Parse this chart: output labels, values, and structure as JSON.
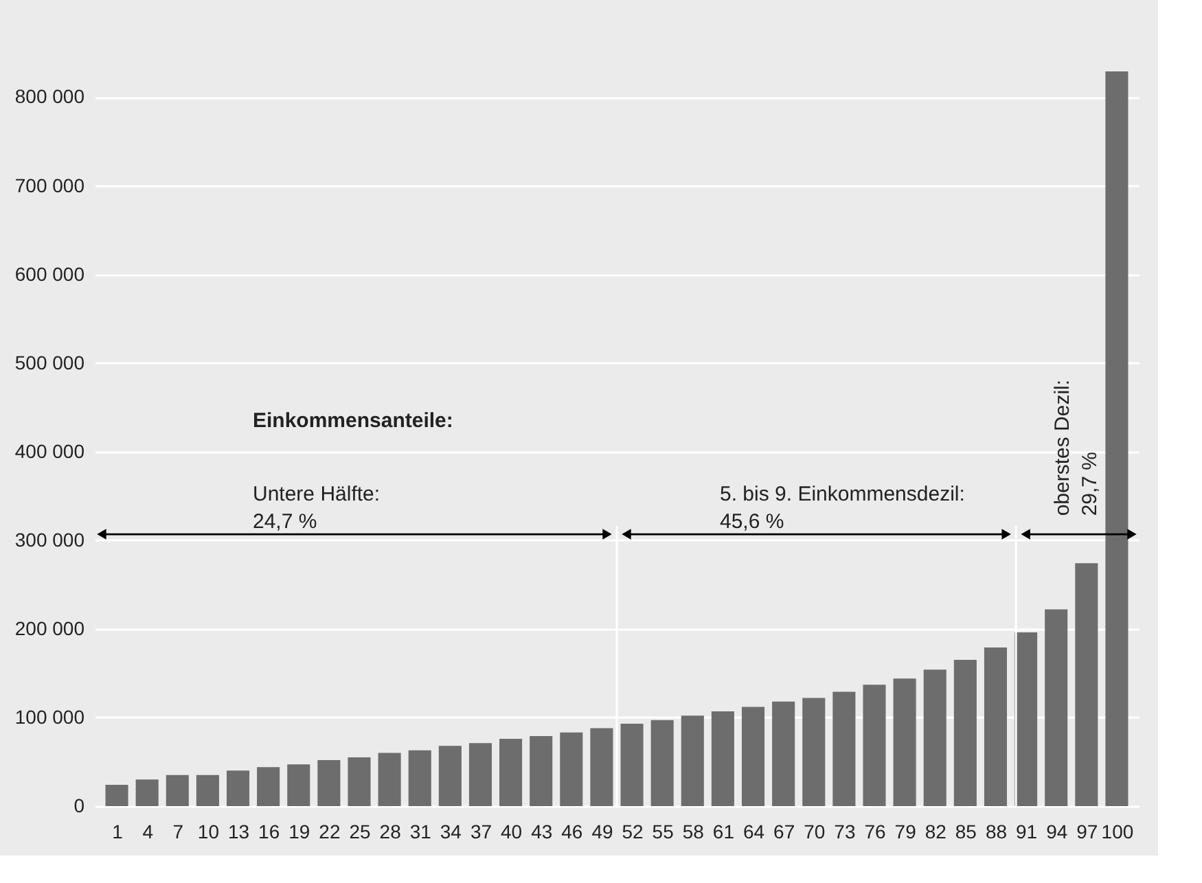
{
  "chart_data": {
    "type": "bar",
    "categories": [
      "1",
      "4",
      "7",
      "10",
      "13",
      "16",
      "19",
      "22",
      "25",
      "28",
      "31",
      "34",
      "37",
      "40",
      "43",
      "46",
      "49",
      "52",
      "55",
      "58",
      "61",
      "64",
      "67",
      "70",
      "73",
      "76",
      "79",
      "82",
      "85",
      "88",
      "91",
      "94",
      "97",
      "100"
    ],
    "values": [
      24000,
      30000,
      35000,
      35000,
      40000,
      44000,
      47000,
      52000,
      55000,
      60000,
      63000,
      68000,
      71000,
      76000,
      79000,
      83000,
      88000,
      93000,
      97000,
      102000,
      107000,
      112000,
      118000,
      122000,
      129000,
      137000,
      144000,
      154000,
      165000,
      179000,
      196000,
      222000,
      274000,
      829000
    ],
    "color": "#6d6d6d",
    "ylim": [
      0,
      829000
    ],
    "yticks": [
      {
        "value": 0,
        "label": "0"
      },
      {
        "value": 100000,
        "label": "100 000"
      },
      {
        "value": 200000,
        "label": "200 000"
      },
      {
        "value": 300000,
        "label": "300 000"
      },
      {
        "value": 400000,
        "label": "400 000"
      },
      {
        "value": 500000,
        "label": "500 000"
      },
      {
        "value": 600000,
        "label": "600 000"
      },
      {
        "value": 700000,
        "label": "700 000"
      },
      {
        "value": 800000,
        "label": "800 000"
      }
    ],
    "grid": "y",
    "annotations": [
      "Einkommensanteile:",
      "Untere Hälfte:\n24,7 %",
      "5. bis 9. Einkommensdezil:\n45,6 %",
      "oberstes Dezil:\n29,7 %"
    ]
  }
}
